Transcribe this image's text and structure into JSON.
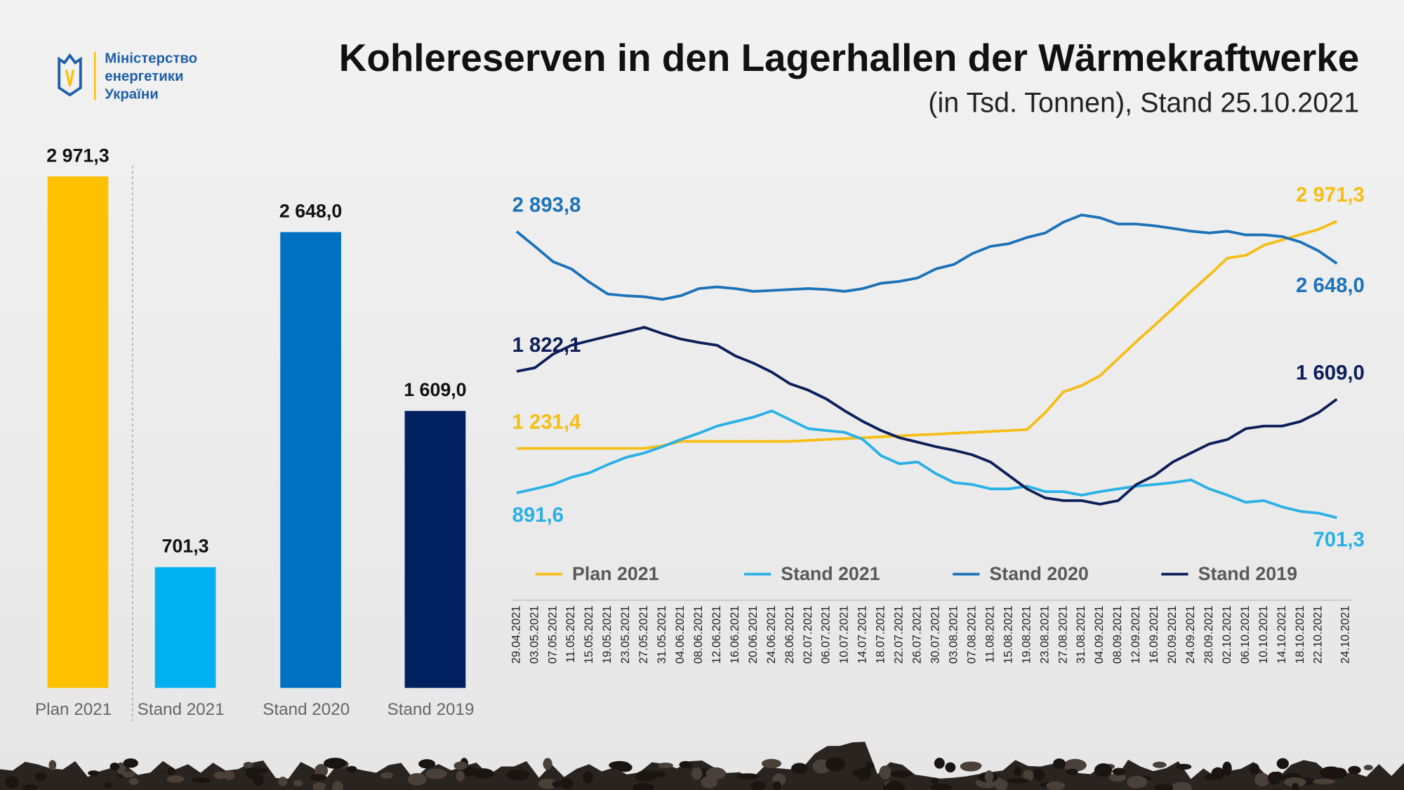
{
  "header": {
    "logo_text": [
      "Міністерство",
      "енергетики",
      "України"
    ]
  },
  "title": "Kohlereserven in den Lagerhallen der Wärmekraftwerke",
  "subtitle": "(in Tsd. Tonnen), Stand 25.10.2021",
  "chart_data": [
    {
      "type": "bar",
      "categories": [
        "Plan 2021",
        "Stand 2021",
        "Stand 2020",
        "Stand 2019"
      ],
      "values": [
        2971.3,
        701.3,
        2648.0,
        1609.0
      ],
      "value_labels": [
        "2 971,3",
        "701,3",
        "2 648,0",
        "1 609,0"
      ],
      "colors": [
        "#FFC000",
        "#00B0F0",
        "#0070C0",
        "#002060"
      ]
    },
    {
      "type": "line",
      "x": [
        "29.04.2021",
        "03.05.2021",
        "07.05.2021",
        "11.05.2021",
        "15.05.2021",
        "19.05.2021",
        "23.05.2021",
        "27.05.2021",
        "31.05.2021",
        "04.06.2021",
        "08.06.2021",
        "12.06.2021",
        "16.06.2021",
        "20.06.2021",
        "24.06.2021",
        "28.06.2021",
        "02.07.2021",
        "06.07.2021",
        "10.07.2021",
        "14.07.2021",
        "18.07.2021",
        "22.07.2021",
        "26.07.2021",
        "30.07.2021",
        "03.08.2021",
        "07.08.2021",
        "11.08.2021",
        "15.08.2021",
        "19.08.2021",
        "23.08.2021",
        "27.08.2021",
        "31.08.2021",
        "04.09.2021",
        "08.09.2021",
        "12.09.2021",
        "16.09.2021",
        "20.09.2021",
        "24.09.2021",
        "28.09.2021",
        "02.10.2021",
        "06.10.2021",
        "10.10.2021",
        "14.10.2021",
        "18.10.2021",
        "22.10.2021",
        "24.10.2021"
      ],
      "series": [
        {
          "name": "Plan 2021",
          "color": "#F5BE16",
          "values": [
            1231.4,
            1232,
            1232,
            1232,
            1232,
            1232,
            1232,
            1232,
            1252,
            1286,
            1286,
            1286,
            1286,
            1286,
            1286,
            1286,
            1293,
            1300,
            1307,
            1314,
            1321,
            1328,
            1335,
            1341,
            1348,
            1355,
            1362,
            1369,
            1376,
            1506,
            1665,
            1713,
            1788,
            1919,
            2050,
            2174,
            2304,
            2435,
            2559,
            2690,
            2710,
            2788,
            2829,
            2870,
            2910,
            2971.3
          ],
          "value_labels": [
            "1 231,4",
            null,
            null,
            null,
            null,
            null,
            null,
            null,
            null,
            null,
            null,
            null,
            null,
            null,
            null,
            null,
            null,
            null,
            null,
            null,
            null,
            null,
            null,
            null,
            null,
            null,
            null,
            null,
            null,
            null,
            null,
            null,
            null,
            null,
            null,
            null,
            null,
            null,
            null,
            null,
            null,
            null,
            null,
            null,
            null,
            "2 971,3"
          ]
        },
        {
          "name": "Stand 2021",
          "color": "#29B1E6",
          "values": [
            891.6,
            922,
            956,
            1011,
            1046,
            1108,
            1163,
            1197,
            1245,
            1300,
            1348,
            1403,
            1438,
            1472,
            1520,
            1451,
            1383,
            1369,
            1355,
            1300,
            1176,
            1114,
            1128,
            1039,
            970,
            956,
            922,
            922,
            943,
            901,
            901,
            874,
            901,
            922,
            943,
            956,
            970,
            991,
            922,
            874,
            819,
            832,
            784,
            750,
            736,
            701.3
          ],
          "value_labels": [
            "891,6",
            null,
            null,
            null,
            null,
            null,
            null,
            null,
            null,
            null,
            null,
            null,
            null,
            null,
            null,
            null,
            null,
            null,
            null,
            null,
            null,
            null,
            null,
            null,
            null,
            null,
            null,
            null,
            null,
            null,
            null,
            null,
            null,
            null,
            null,
            null,
            null,
            null,
            null,
            null,
            null,
            null,
            null,
            null,
            null,
            "701,3"
          ]
        },
        {
          "name": "Stand 2020",
          "color": "#1C72B8",
          "values": [
            2893.8,
            2779,
            2662,
            2607,
            2504,
            2414,
            2401,
            2394,
            2373,
            2401,
            2456,
            2469,
            2456,
            2435,
            2442,
            2449,
            2456,
            2449,
            2435,
            2456,
            2497,
            2511,
            2538,
            2607,
            2641,
            2724,
            2779,
            2800,
            2848,
            2882,
            2965,
            3020,
            2999,
            2951,
            2951,
            2937,
            2917,
            2896,
            2882,
            2896,
            2868,
            2868,
            2855,
            2813,
            2745,
            2648.0
          ],
          "value_labels": [
            "2 893,8",
            null,
            null,
            null,
            null,
            null,
            null,
            null,
            null,
            null,
            null,
            null,
            null,
            null,
            null,
            null,
            null,
            null,
            null,
            null,
            null,
            null,
            null,
            null,
            null,
            null,
            null,
            null,
            null,
            null,
            null,
            null,
            null,
            null,
            null,
            null,
            null,
            null,
            null,
            null,
            null,
            null,
            null,
            null,
            null,
            "2 648,0"
          ]
        },
        {
          "name": "Stand 2019",
          "color": "#0D1E58",
          "values": [
            1822.1,
            1850,
            1954,
            2022,
            2057,
            2091,
            2125,
            2160,
            2112,
            2070,
            2043,
            2022,
            1940,
            1885,
            1816,
            1727,
            1678,
            1610,
            1520,
            1438,
            1369,
            1314,
            1280,
            1245,
            1218,
            1183,
            1128,
            1025,
            922,
            853,
            832,
            832,
            805,
            832,
            956,
            1025,
            1128,
            1197,
            1266,
            1300,
            1383,
            1403,
            1403,
            1438,
            1507,
            1609.0
          ],
          "value_labels": [
            "1 822,1",
            null,
            null,
            null,
            null,
            null,
            null,
            null,
            null,
            null,
            null,
            null,
            null,
            null,
            null,
            null,
            null,
            null,
            null,
            null,
            null,
            null,
            null,
            null,
            null,
            null,
            null,
            null,
            null,
            null,
            null,
            null,
            null,
            null,
            null,
            null,
            null,
            null,
            null,
            null,
            null,
            null,
            null,
            null,
            null,
            "1 609,0"
          ]
        }
      ]
    }
  ]
}
